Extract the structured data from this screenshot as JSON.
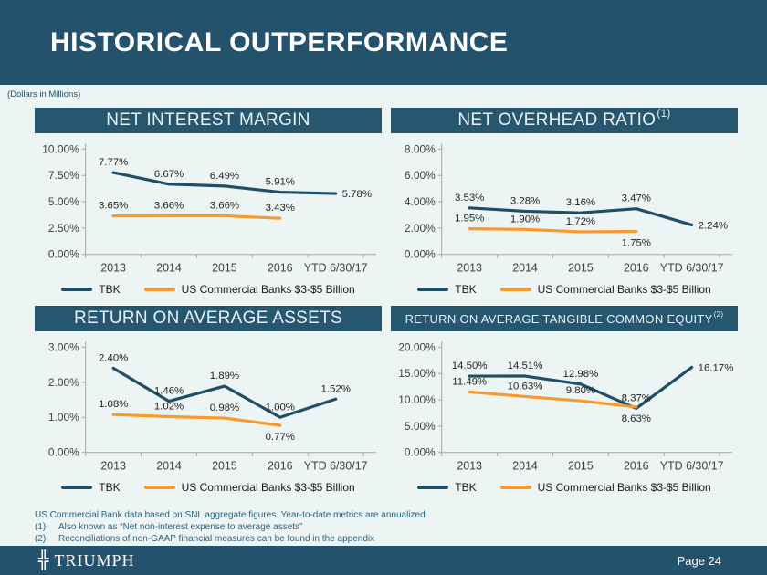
{
  "header": {
    "title": "HISTORICAL OUTPERFORMANCE"
  },
  "subtitle": "(Dollars in Millions)",
  "legend": {
    "tbk": "TBK",
    "us": "US Commercial Banks $3-$5 Billion"
  },
  "colors": {
    "banner": "#24526C",
    "title_bar": "#27566F",
    "background": "#EDF4F4",
    "tbk_line": "#1F4F66",
    "us_line": "#F79A2D",
    "footnote_text": "#2A6480"
  },
  "chart_data": [
    {
      "type": "line",
      "title": "NET INTEREST MARGIN",
      "title_superscript": "",
      "categories": [
        "2013",
        "2014",
        "2015",
        "2016",
        "YTD 6/30/17"
      ],
      "ylim": [
        0,
        10
      ],
      "yticks": [
        0,
        2.5,
        5,
        7.5,
        10
      ],
      "ytick_labels": [
        "0.00%",
        "2.50%",
        "5.00%",
        "7.50%",
        "10.00%"
      ],
      "grid": false,
      "legend_position": "bottom",
      "series": [
        {
          "name": "TBK",
          "color": "#1F4F66",
          "values": [
            7.77,
            6.67,
            6.49,
            5.91,
            5.78
          ],
          "labels": [
            "7.77%",
            "6.67%",
            "6.49%",
            "5.91%",
            "5.78%"
          ],
          "label_pos": [
            "above",
            "above",
            "above",
            "above",
            "right"
          ]
        },
        {
          "name": "US Commercial Banks $3-$5 Billion",
          "color": "#F79A2D",
          "values": [
            3.65,
            3.66,
            3.66,
            3.43,
            null
          ],
          "labels": [
            "3.65%",
            "3.66%",
            "3.66%",
            "3.43%",
            ""
          ],
          "label_pos": [
            "above",
            "above",
            "above",
            "above",
            "above"
          ]
        }
      ]
    },
    {
      "type": "line",
      "title": "NET OVERHEAD RATIO",
      "title_superscript": "(1)",
      "categories": [
        "2013",
        "2014",
        "2015",
        "2016",
        "YTD 6/30/17"
      ],
      "ylim": [
        0,
        8
      ],
      "yticks": [
        0,
        2,
        4,
        6,
        8
      ],
      "ytick_labels": [
        "0.00%",
        "2.00%",
        "4.00%",
        "6.00%",
        "8.00%"
      ],
      "grid": false,
      "legend_position": "bottom",
      "series": [
        {
          "name": "TBK",
          "color": "#1F4F66",
          "values": [
            3.53,
            3.28,
            3.16,
            3.47,
            2.24
          ],
          "labels": [
            "3.53%",
            "3.28%",
            "3.16%",
            "3.47%",
            "2.24%"
          ],
          "label_pos": [
            "above",
            "above",
            "above",
            "above",
            "right"
          ]
        },
        {
          "name": "US Commercial Banks $3-$5 Billion",
          "color": "#F79A2D",
          "values": [
            1.95,
            1.9,
            1.72,
            1.75,
            null
          ],
          "labels": [
            "1.95%",
            "1.90%",
            "1.72%",
            "1.75%",
            ""
          ],
          "label_pos": [
            "above",
            "above",
            "above",
            "below",
            "above"
          ]
        }
      ]
    },
    {
      "type": "line",
      "title": "RETURN ON AVERAGE ASSETS",
      "title_superscript": "",
      "categories": [
        "2013",
        "2014",
        "2015",
        "2016",
        "YTD 6/30/17"
      ],
      "ylim": [
        0,
        3
      ],
      "yticks": [
        0,
        1,
        2,
        3
      ],
      "ytick_labels": [
        "0.00%",
        "1.00%",
        "2.00%",
        "3.00%"
      ],
      "grid": false,
      "legend_position": "bottom",
      "series": [
        {
          "name": "TBK",
          "color": "#1F4F66",
          "values": [
            2.4,
            1.46,
            1.89,
            1.0,
            1.52
          ],
          "labels": [
            "2.40%",
            "1.46%",
            "1.89%",
            "1.00%",
            "1.52%"
          ],
          "label_pos": [
            "above",
            "above",
            "above",
            "above",
            "above"
          ]
        },
        {
          "name": "US Commercial Banks $3-$5 Billion",
          "color": "#F79A2D",
          "values": [
            1.08,
            1.02,
            0.98,
            0.77,
            null
          ],
          "labels": [
            "1.08%",
            "1.02%",
            "0.98%",
            "0.77%",
            ""
          ],
          "label_pos": [
            "above",
            "above",
            "above",
            "below",
            "above"
          ]
        }
      ]
    },
    {
      "type": "line",
      "title": "RETURN ON AVERAGE TANGIBLE COMMON EQUITY",
      "title_superscript": "(2)",
      "categories": [
        "2013",
        "2014",
        "2015",
        "2016",
        "YTD 6/30/17"
      ],
      "ylim": [
        0,
        20
      ],
      "yticks": [
        0,
        5,
        10,
        15,
        20
      ],
      "ytick_labels": [
        "0.00%",
        "5.00%",
        "10.00%",
        "15.00%",
        "20.00%"
      ],
      "grid": false,
      "legend_position": "bottom",
      "series": [
        {
          "name": "TBK",
          "color": "#1F4F66",
          "values": [
            14.5,
            14.51,
            12.98,
            8.37,
            16.17
          ],
          "labels": [
            "14.50%",
            "14.51%",
            "12.98%",
            "8.37%",
            "16.17%"
          ],
          "label_pos": [
            "above",
            "above",
            "above",
            "above",
            "right"
          ]
        },
        {
          "name": "US Commercial Banks $3-$5 Billion",
          "color": "#F79A2D",
          "values": [
            11.49,
            10.63,
            9.8,
            8.63,
            null
          ],
          "labels": [
            "11.49%",
            "10.63%",
            "9.80%",
            "8.63%",
            ""
          ],
          "label_pos": [
            "above",
            "above",
            "above",
            "below",
            "above"
          ]
        }
      ]
    }
  ],
  "footnotes": {
    "general": "US Commercial Bank data based on SNL aggregate figures. Year-to-date metrics are annualized",
    "note1_num": "(1)",
    "note1": "Also known as “Net non-interest expense to average assets”",
    "note2_num": "(2)",
    "note2": "Reconciliations of non-GAAP financial measures can be found in the appendix"
  },
  "footer": {
    "brand": "TRIUMPH",
    "cross_glyph": "╬",
    "page": "Page 24"
  }
}
